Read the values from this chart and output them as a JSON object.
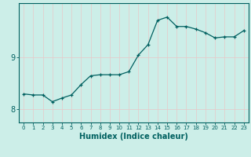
{
  "xlabel": "Humidex (Indice chaleur)",
  "bg_color": "#cceee8",
  "grid_color": "#e8c8c8",
  "line_color": "#006060",
  "marker_color": "#006060",
  "x": [
    0,
    1,
    2,
    3,
    4,
    5,
    6,
    7,
    8,
    9,
    10,
    11,
    12,
    13,
    14,
    15,
    16,
    17,
    18,
    19,
    20,
    21,
    22,
    23
  ],
  "y": [
    8.3,
    8.28,
    8.28,
    8.15,
    8.22,
    8.28,
    8.48,
    8.65,
    8.67,
    8.67,
    8.67,
    8.73,
    9.05,
    9.25,
    9.72,
    9.78,
    9.6,
    9.6,
    9.55,
    9.48,
    9.38,
    9.4,
    9.4,
    9.52
  ],
  "ytick_vals": [
    8,
    9
  ],
  "ytick_labels": [
    "8",
    "9"
  ],
  "ylim": [
    7.75,
    10.05
  ],
  "xlim": [
    -0.5,
    23.5
  ],
  "xlabel_fontsize": 7,
  "ytick_fontsize": 7,
  "xtick_fontsize": 5,
  "linewidth": 0.9,
  "markersize": 3.5
}
